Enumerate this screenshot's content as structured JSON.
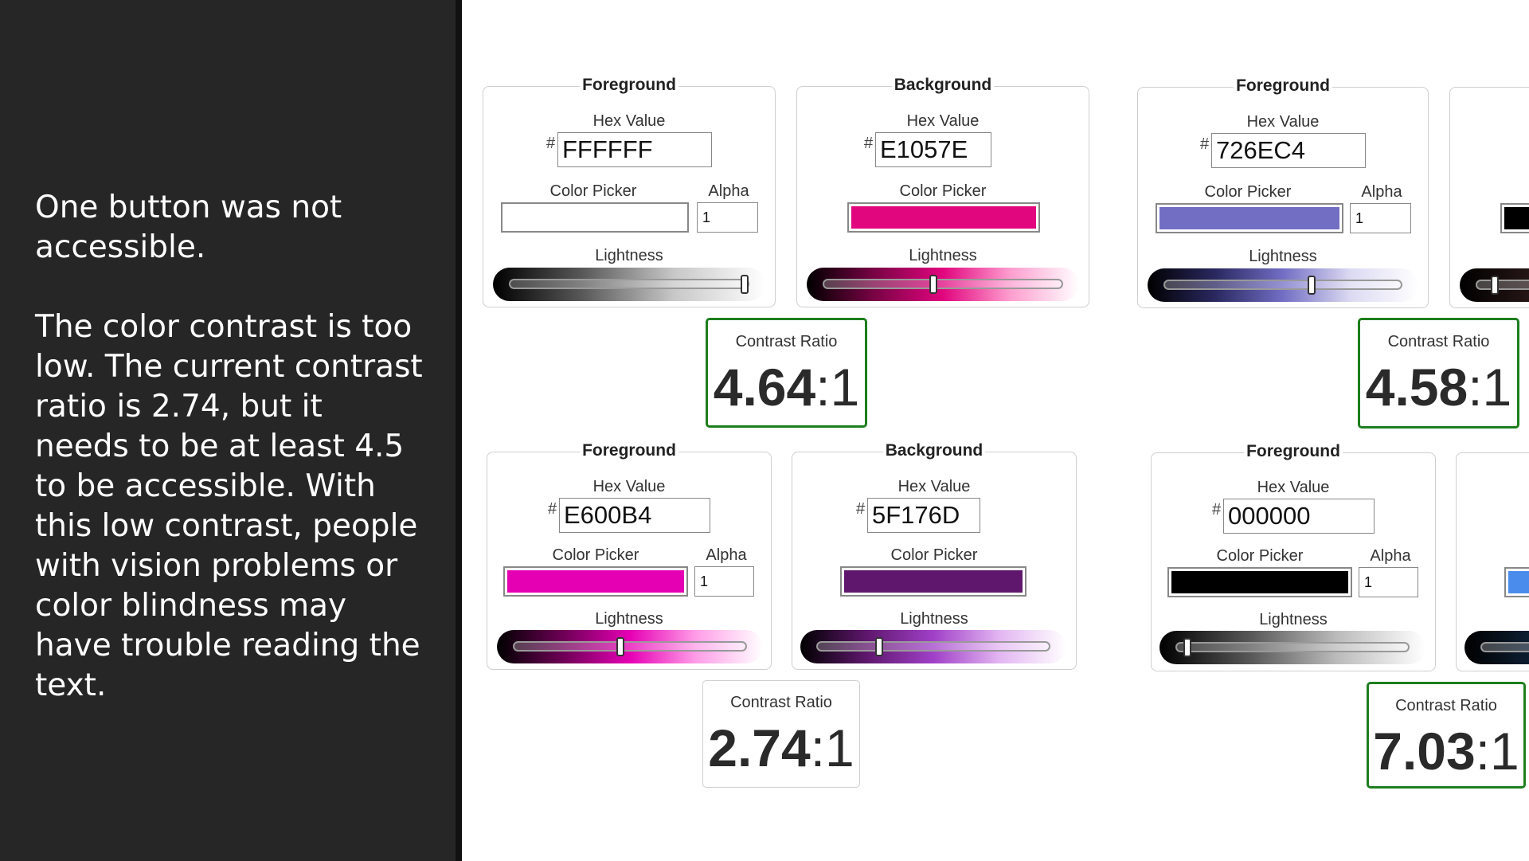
{
  "sidebar": {
    "heading": "One button was not accessible.",
    "body": "The color contrast is too low. The current contrast ratio is 2.74, but it needs to be at least 4.5 to be accessible. With this low contrast, people with vision problems or color blindness may have trouble reading the text."
  },
  "labels": {
    "foreground": "Foreground",
    "background": "Background",
    "hex_value": "Hex Value",
    "hash": "#",
    "color_picker": "Color Picker",
    "alpha": "Alpha",
    "lightness": "Lightness",
    "contrast_ratio": "Contrast Ratio",
    "ratio_suffix": ":1"
  },
  "pairs": [
    {
      "foreground": {
        "hex": "FFFFFF",
        "color": "#FFFFFF",
        "alpha": "1",
        "lightness": 0.98,
        "gradient": "linear-gradient(to right,#000,#5a5a5a,#c8c8c8,#fff)"
      },
      "background": {
        "hex": "E1057E",
        "color": "#E1057E",
        "lightness": 0.46,
        "gradient": "linear-gradient(to right,#000,#7a0345,#e1057e,#ff9fd0,#fff)"
      },
      "ratio": "4.64",
      "passes": true
    },
    {
      "foreground": {
        "hex": "726EC4",
        "color": "#726EC4",
        "alpha": "1",
        "lightness": 0.62,
        "gradient": "linear-gradient(to right,#000,#2a2860,#726ec4,#dcdaf2,#fff)"
      },
      "background": {
        "hex": "",
        "color": "#000000",
        "lightness": 0.08,
        "gradient": "linear-gradient(to right,#000,#4a2a2a,#b07a70)"
      },
      "ratio": "4.58",
      "passes": true
    },
    {
      "foreground": {
        "hex": "E600B4",
        "color": "#E600B4",
        "alpha": "1",
        "lightness": 0.46,
        "gradient": "linear-gradient(to right,#000,#6e0056,#e600b4,#ff9ee8,#fff)"
      },
      "background": {
        "hex": "5F176D",
        "color": "#5F176D",
        "lightness": 0.27,
        "gradient": "linear-gradient(to right,#000,#5f176d,#a040c8,#e3b6f2,#fff)"
      },
      "ratio": "2.74",
      "passes": false
    },
    {
      "foreground": {
        "hex": "000000",
        "color": "#000000",
        "alpha": "1",
        "lightness": 0.05,
        "gradient": "linear-gradient(to right,#000,#555,#bbb,#fff)"
      },
      "background": {
        "hex": "",
        "color": "#4A8CEB",
        "lightness": 0.5,
        "gradient": "linear-gradient(to right,#000,#1a3d66,#4a8ceb)"
      },
      "ratio": "7.03",
      "passes": true
    }
  ]
}
